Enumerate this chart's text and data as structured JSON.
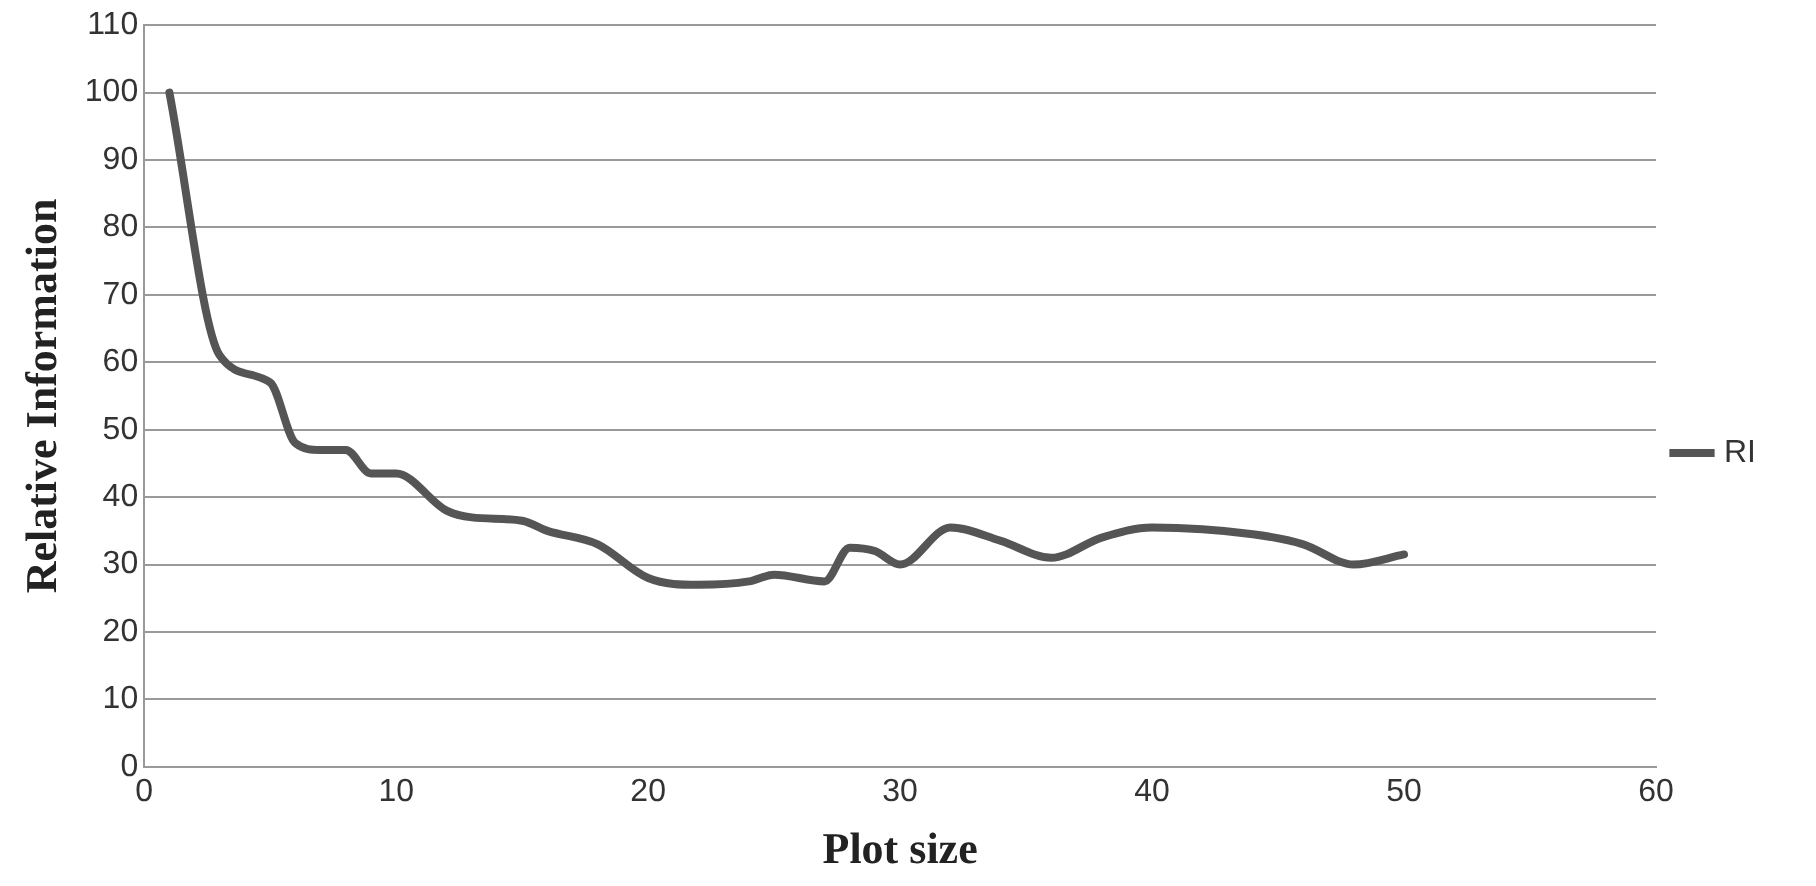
{
  "chart_data": {
    "type": "line",
    "xlabel": "Plot size",
    "ylabel": "Relative Information",
    "series": [
      {
        "name": "RI",
        "color": "#555555",
        "x": [
          1,
          3,
          5,
          6,
          7,
          8,
          9,
          10,
          12,
          13,
          15,
          16,
          18,
          20,
          22,
          24,
          25,
          27,
          28,
          29,
          30,
          32,
          34,
          36,
          38,
          40,
          44,
          46,
          48,
          50
        ],
        "values": [
          100,
          61,
          57,
          48,
          47,
          47,
          43.5,
          43.5,
          38,
          37,
          36.5,
          35,
          33,
          28,
          27,
          27.5,
          28.5,
          27.5,
          32.5,
          32,
          30,
          35.5,
          33.5,
          31,
          34,
          35.5,
          34.5,
          33,
          30,
          31.5
        ]
      }
    ],
    "xlim": [
      0,
      60
    ],
    "xticks": [
      0,
      10,
      20,
      30,
      40,
      50,
      60
    ],
    "ylim": [
      0,
      110
    ],
    "yticks": [
      0,
      10,
      20,
      30,
      40,
      50,
      60,
      70,
      80,
      90,
      100,
      110
    ],
    "grid": "y",
    "legend": "right",
    "marker": "none",
    "line_style": "solid"
  }
}
